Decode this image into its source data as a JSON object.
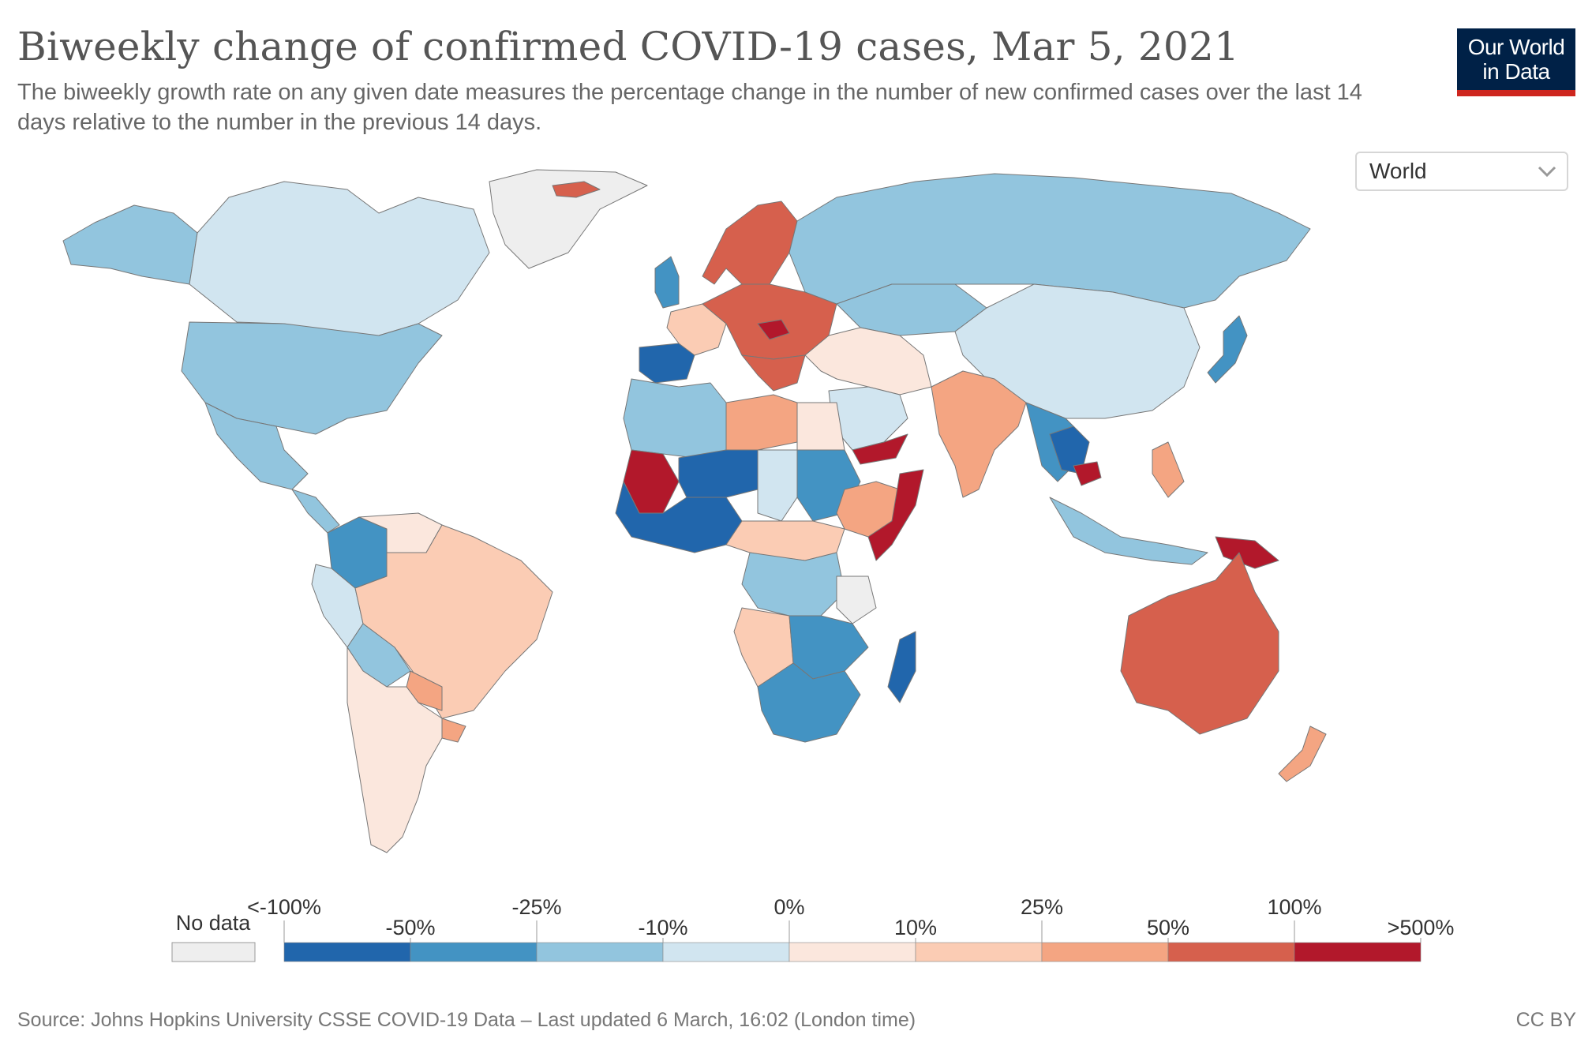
{
  "header": {
    "title": "Biweekly change of confirmed COVID-19 cases, Mar 5, 2021",
    "subtitle": "The biweekly growth rate on any given date measures the percentage change in the number of new confirmed cases over the last 14 days relative to the number in the previous 14 days.",
    "logo_line1": "Our World",
    "logo_line2": "in Data"
  },
  "controls": {
    "region_selected": "World",
    "icon": "chevron-down-icon"
  },
  "legend": {
    "no_data_label": "No data",
    "no_data_color": "#eeeeee",
    "bins": [
      {
        "color": "#2166ac"
      },
      {
        "color": "#4393c3"
      },
      {
        "color": "#92c5de"
      },
      {
        "color": "#d1e5f0"
      },
      {
        "color": "#fbe7dd"
      },
      {
        "color": "#fbccb4"
      },
      {
        "color": "#f4a582"
      },
      {
        "color": "#d6604d"
      },
      {
        "color": "#b2182b"
      }
    ],
    "upper_labels": [
      "<-100%",
      "-25%",
      "0%",
      "25%",
      "100%"
    ],
    "lower_labels": [
      "-50%",
      "-10%",
      "10%",
      "50%",
      ">500%"
    ]
  },
  "map": {
    "regions": [
      {
        "name": "canada",
        "color": "#d1e5f0"
      },
      {
        "name": "alaska",
        "color": "#92c5de"
      },
      {
        "name": "usa",
        "color": "#92c5de"
      },
      {
        "name": "mexico",
        "color": "#92c5de"
      },
      {
        "name": "greenland",
        "color": "#eeeeee"
      },
      {
        "name": "brazil",
        "color": "#fbccb4"
      },
      {
        "name": "colombia",
        "color": "#4393c3"
      },
      {
        "name": "venezuela",
        "color": "#fbe7dd"
      },
      {
        "name": "peru",
        "color": "#d1e5f0"
      },
      {
        "name": "bolivia",
        "color": "#92c5de"
      },
      {
        "name": "argentina-chile",
        "color": "#fbe7dd"
      },
      {
        "name": "paraguay",
        "color": "#f4a582"
      },
      {
        "name": "uruguay",
        "color": "#f4a582"
      },
      {
        "name": "iceland",
        "color": "#d6604d"
      },
      {
        "name": "scandinavia",
        "color": "#d6604d"
      },
      {
        "name": "uk",
        "color": "#4393c3"
      },
      {
        "name": "iberia",
        "color": "#2166ac"
      },
      {
        "name": "france",
        "color": "#fbccb4"
      },
      {
        "name": "central-europe",
        "color": "#d6604d"
      },
      {
        "name": "hungary",
        "color": "#b2182b"
      },
      {
        "name": "russia",
        "color": "#92c5de"
      },
      {
        "name": "kazakhstan",
        "color": "#92c5de"
      },
      {
        "name": "china-mongolia",
        "color": "#d1e5f0"
      },
      {
        "name": "japan",
        "color": "#4393c3"
      },
      {
        "name": "india",
        "color": "#f4a582"
      },
      {
        "name": "middle-east",
        "color": "#fbe7dd"
      },
      {
        "name": "saudi-arabia",
        "color": "#d1e5f0"
      },
      {
        "name": "yemen",
        "color": "#b2182b"
      },
      {
        "name": "north-africa-west",
        "color": "#92c5de"
      },
      {
        "name": "libya",
        "color": "#f4a582"
      },
      {
        "name": "egypt",
        "color": "#fbe7dd"
      },
      {
        "name": "mali",
        "color": "#b2182b"
      },
      {
        "name": "niger",
        "color": "#2166ac"
      },
      {
        "name": "chad",
        "color": "#d1e5f0"
      },
      {
        "name": "sudan",
        "color": "#4393c3"
      },
      {
        "name": "ethiopia",
        "color": "#f4a582"
      },
      {
        "name": "somalia",
        "color": "#b2182b"
      },
      {
        "name": "central-africa",
        "color": "#fbccb4"
      },
      {
        "name": "congo",
        "color": "#92c5de"
      },
      {
        "name": "tanzania",
        "color": "#eeeeee"
      },
      {
        "name": "angola",
        "color": "#fbccb4"
      },
      {
        "name": "zambia",
        "color": "#4393c3"
      },
      {
        "name": "south-africa",
        "color": "#4393c3"
      },
      {
        "name": "madagascar",
        "color": "#2166ac"
      },
      {
        "name": "southeast-asia",
        "color": "#4393c3"
      },
      {
        "name": "thailand",
        "color": "#2166ac"
      },
      {
        "name": "cambodia",
        "color": "#b2182b"
      },
      {
        "name": "indonesia",
        "color": "#92c5de"
      },
      {
        "name": "philippines",
        "color": "#f4a582"
      },
      {
        "name": "papua-new-guinea",
        "color": "#b2182b"
      },
      {
        "name": "australia",
        "color": "#d6604d"
      },
      {
        "name": "new-zealand",
        "color": "#f4a582"
      }
    ]
  },
  "footer": {
    "source": "Source: Johns Hopkins University CSSE COVID-19 Data – Last updated 6 March, 16:02 (London time)",
    "license": "CC BY"
  }
}
